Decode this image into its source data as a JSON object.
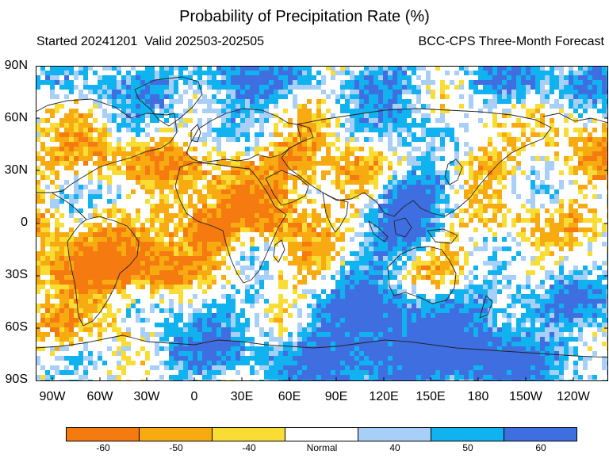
{
  "title": "Probability of Precipitation Rate (%)",
  "subtitle_left": "Started 20241201  Valid 202503-202505",
  "subtitle_right": "BCC-CPS Three-Month Forecast",
  "lat_labels": [
    "90N",
    "60N",
    "30N",
    "0",
    "30S",
    "60S",
    "90S"
  ],
  "lon_labels": [
    "90W",
    "60W",
    "30W",
    "0",
    "30E",
    "60E",
    "90E",
    "120E",
    "150E",
    "180",
    "150W",
    "120W"
  ],
  "legend": {
    "colors": [
      "#f57a10",
      "#f8ab10",
      "#f9dd35",
      "#ffffff",
      "#a7cff7",
      "#10b2ef",
      "#3f6ee1"
    ],
    "labels": [
      "-60",
      "-50",
      "-40",
      "Normal",
      "40",
      "50",
      "60"
    ]
  }
}
